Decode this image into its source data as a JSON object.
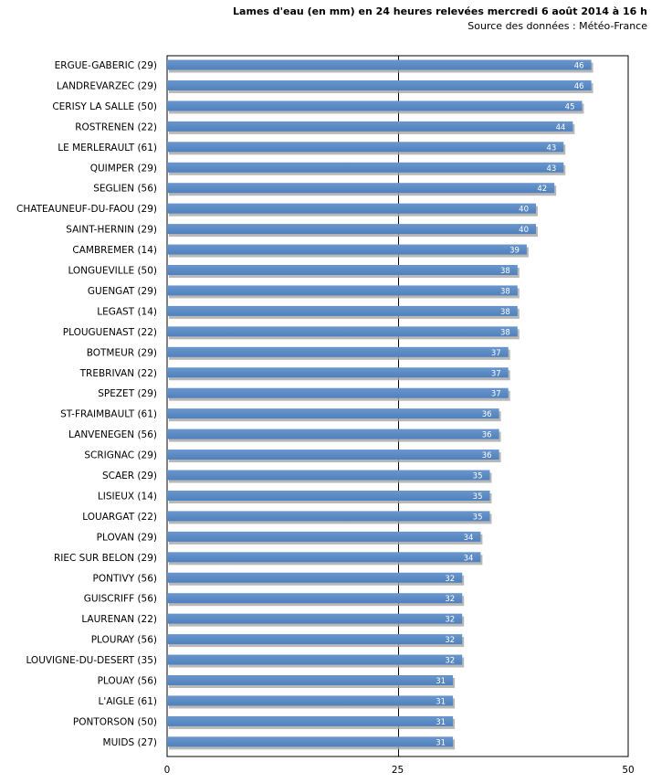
{
  "title": "Lames d'eau (en mm) en 24 heures relevées mercredi 6 août  2014 à 16 h",
  "subtitle": "Source des données : Météo-France",
  "colors": {
    "bar": "#4f81bd",
    "bar_light": "#6a96cc",
    "shadow": "#a6a6a6",
    "grid": "#000000"
  },
  "chart_data": {
    "type": "bar",
    "orientation": "horizontal",
    "title": "Lames d'eau (en mm) en 24 heures relevées mercredi 6 août  2014 à 16 h",
    "subtitle": "Source des données : Météo-France",
    "categories": [
      "ERGUE-GABERIC (29)",
      "LANDREVARZEC (29)",
      "CERISY LA SALLE (50)",
      "ROSTRENEN (22)",
      "LE MERLERAULT (61)",
      "QUIMPER (29)",
      "SEGLIEN (56)",
      "CHATEAUNEUF-DU-FAOU (29)",
      "SAINT-HERNIN (29)",
      "CAMBREMER (14)",
      "LONGUEVILLE (50)",
      "GUENGAT (29)",
      "LEGAST (14)",
      "PLOUGUENAST (22)",
      "BOTMEUR (29)",
      "TREBRIVAN (22)",
      "SPEZET (29)",
      "ST-FRAIMBAULT (61)",
      "LANVENEGEN (56)",
      "SCRIGNAC (29)",
      "SCAER (29)",
      "LISIEUX (14)",
      "LOUARGAT (22)",
      "PLOVAN (29)",
      "RIEC SUR BELON (29)",
      "PONTIVY (56)",
      "GUISCRIFF (56)",
      "LAURENAN (22)",
      "PLOURAY (56)",
      "LOUVIGNE-DU-DESERT (35)",
      "PLOUAY (56)",
      "L'AIGLE (61)",
      "PONTORSON (50)",
      "MUIDS (27)"
    ],
    "values": [
      46,
      46,
      45,
      44,
      43,
      43,
      42,
      40,
      40,
      39,
      38,
      38,
      38,
      38,
      37,
      37,
      37,
      36,
      36,
      36,
      35,
      35,
      35,
      34,
      34,
      32,
      32,
      32,
      32,
      32,
      31,
      31,
      31,
      31
    ],
    "xlim": [
      0,
      50
    ],
    "xticks": [
      "0",
      "25",
      "50"
    ],
    "grid": true,
    "legend": "none"
  }
}
